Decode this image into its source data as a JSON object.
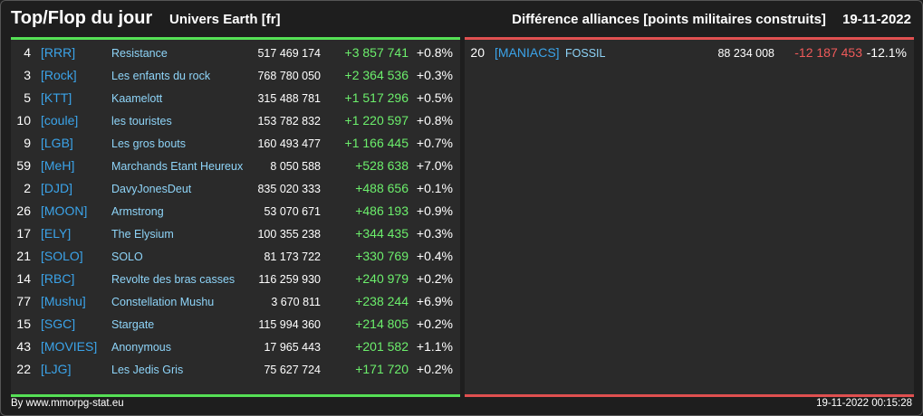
{
  "header": {
    "title": "Top/Flop du jour",
    "universe": "Univers Earth [fr]",
    "category": "Différence alliances [points militaires construits]",
    "date": "19-11-2022"
  },
  "top": [
    {
      "rank": "4",
      "tag": "[RRR]",
      "name": "Resistance",
      "points": "517 469 174",
      "diff": "+3 857 741",
      "pct": "+0.8%"
    },
    {
      "rank": "3",
      "tag": "[Rock]",
      "name": "Les enfants du rock",
      "points": "768 780 050",
      "diff": "+2 364 536",
      "pct": "+0.3%"
    },
    {
      "rank": "5",
      "tag": "[KTT]",
      "name": "Kaamelott",
      "points": "315 488 781",
      "diff": "+1 517 296",
      "pct": "+0.5%"
    },
    {
      "rank": "10",
      "tag": "[coule]",
      "name": "les touristes",
      "points": "153 782 832",
      "diff": "+1 220 597",
      "pct": "+0.8%"
    },
    {
      "rank": "9",
      "tag": "[LGB]",
      "name": "Les gros bouts",
      "points": "160 493 477",
      "diff": "+1 166 445",
      "pct": "+0.7%"
    },
    {
      "rank": "59",
      "tag": "[MeH]",
      "name": "Marchands Etant Heureux",
      "points": "8 050 588",
      "diff": "+528 638",
      "pct": "+7.0%"
    },
    {
      "rank": "2",
      "tag": "[DJD]",
      "name": "DavyJonesDeut",
      "points": "835 020 333",
      "diff": "+488 656",
      "pct": "+0.1%"
    },
    {
      "rank": "26",
      "tag": "[MOON]",
      "name": "Armstrong",
      "points": "53 070 671",
      "diff": "+486 193",
      "pct": "+0.9%"
    },
    {
      "rank": "17",
      "tag": "[ELY]",
      "name": "The Elysium",
      "points": "100 355 238",
      "diff": "+344 435",
      "pct": "+0.3%"
    },
    {
      "rank": "21",
      "tag": "[SOLO]",
      "name": "SOLO",
      "points": "81 173 722",
      "diff": "+330 769",
      "pct": "+0.4%"
    },
    {
      "rank": "14",
      "tag": "[RBC]",
      "name": "Revolte des bras casses",
      "points": "116 259 930",
      "diff": "+240 979",
      "pct": "+0.2%"
    },
    {
      "rank": "77",
      "tag": "[Mushu]",
      "name": "Constellation Mushu",
      "points": "3 670 811",
      "diff": "+238 244",
      "pct": "+6.9%"
    },
    {
      "rank": "15",
      "tag": "[SGC]",
      "name": "Stargate",
      "points": "115 994 360",
      "diff": "+214 805",
      "pct": "+0.2%"
    },
    {
      "rank": "43",
      "tag": "[MOVIES]",
      "name": "Anonymous",
      "points": "17 965 443",
      "diff": "+201 582",
      "pct": "+1.1%"
    },
    {
      "rank": "22",
      "tag": "[LJG]",
      "name": "Les Jedis Gris",
      "points": "75 627 724",
      "diff": "+171 720",
      "pct": "+0.2%"
    }
  ],
  "flop": [
    {
      "rank": "20",
      "tag": "[MANIACS]",
      "name": "FOSSIL",
      "points": "88 234 008",
      "diff": "-12 187 453",
      "pct": "-12.1%"
    }
  ],
  "footer": {
    "credit": "By www.mmorpg-stat.eu",
    "timestamp": "19-11-2022 00:15:28"
  },
  "colors": {
    "positive": "#6cef6c",
    "negative": "#ef5a5a",
    "tag": "#3ba4ea",
    "name": "#8ed4f8"
  }
}
